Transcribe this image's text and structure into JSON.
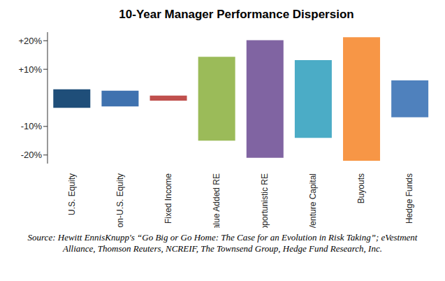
{
  "chart_data": {
    "type": "bar",
    "title": "10-Year Manager Performance Dispersion",
    "categories": [
      "U.S. Equity",
      "Non-U.S. Equity",
      "Fixed Income",
      "Value Added RE",
      "Opportunistic RE",
      "Venture Capital",
      "Buyouts",
      "Hedge Funds"
    ],
    "low": [
      -3.5,
      -3,
      -1,
      -15,
      -21,
      -14,
      -22,
      -6.8
    ],
    "high": [
      3,
      2.5,
      0.8,
      14.4,
      20.2,
      13.2,
      21.2,
      6.1
    ],
    "colors": [
      "#1f4e79",
      "#3f72af",
      "#c0504d",
      "#9bbb59",
      "#8064a2",
      "#4bacc6",
      "#f79646",
      "#4f81bd"
    ],
    "ylim": [
      -23,
      23
    ],
    "yticks": [
      {
        "value": 20,
        "label": "+20%"
      },
      {
        "value": 10,
        "label": "+10%"
      },
      {
        "value": -10,
        "label": "-10%"
      },
      {
        "value": -20,
        "label": "-20%"
      }
    ],
    "grid": false,
    "source": "Source: Hewitt EnnisKnupp's “Go Big or Go Home: The Case for an Evolution in Risk Taking”; eVestment Alliance, Thomson Reuters, NCREIF, The Townsend Group, Hedge Fund Research, Inc."
  }
}
